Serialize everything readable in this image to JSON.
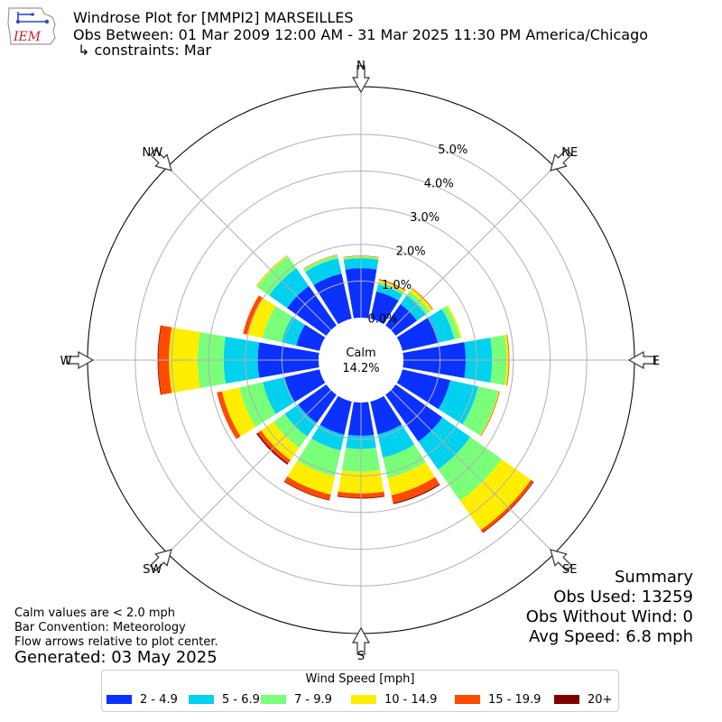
{
  "header": {
    "logo_text": "IEM",
    "title": "Windrose Plot for [MMPI2] MARSEILLES",
    "subtitle": "Obs Between: 01 Mar 2009 12:00 AM - 31 Mar 2025 11:30 PM America/Chicago",
    "constraints": "↳ constraints: Mar"
  },
  "chart_data": {
    "type": "windrose",
    "directions": [
      "N",
      "NNE",
      "NE",
      "ENE",
      "E",
      "ESE",
      "SE",
      "SSE",
      "S",
      "SSW",
      "SW",
      "WSW",
      "W",
      "WNW",
      "NW",
      "NNW"
    ],
    "direction_labels": [
      "N",
      "NE",
      "E",
      "SE",
      "S",
      "SW",
      "W",
      "NW"
    ],
    "radial_ticks": [
      "0.0%",
      "1.0%",
      "2.0%",
      "3.0%",
      "4.0%",
      "5.0%"
    ],
    "rmax": 5.0,
    "calm_label": "Calm",
    "calm_value": "14.2%",
    "bins": [
      "2 - 4.9",
      "5 - 6.9",
      "7 - 9.9",
      "10 - 14.9",
      "15 - 19.9",
      "20+"
    ],
    "colors": [
      "#0b31ff",
      "#00d1ee",
      "#7aff7a",
      "#ffee00",
      "#ff4b00",
      "#7f0000"
    ],
    "sectors": [
      [
        1.35,
        0.27,
        0.04,
        0.02,
        0.0,
        0.01
      ],
      [
        0.76,
        0.2,
        0.07,
        0.05,
        0.03,
        0.0
      ],
      [
        0.71,
        0.31,
        0.12,
        0.09,
        0.02,
        0.0
      ],
      [
        1.02,
        0.43,
        0.15,
        0.05,
        0.0,
        0.0
      ],
      [
        1.7,
        0.72,
        0.4,
        0.05,
        0.02,
        0.0
      ],
      [
        1.34,
        0.78,
        0.56,
        0.02,
        0.02,
        0.0
      ],
      [
        1.56,
        0.93,
        1.04,
        0.98,
        0.08,
        0.02
      ],
      [
        0.92,
        0.65,
        0.57,
        0.48,
        0.22,
        0.03
      ],
      [
        0.91,
        0.36,
        0.62,
        0.59,
        0.12,
        0.02
      ],
      [
        0.93,
        0.44,
        0.72,
        0.51,
        0.15,
        0.02
      ],
      [
        0.94,
        0.45,
        0.38,
        0.41,
        0.11,
        0.04
      ],
      [
        0.98,
        0.61,
        0.65,
        0.49,
        0.14,
        0.0
      ],
      [
        1.66,
        0.93,
        0.71,
        0.78,
        0.29,
        0.02
      ],
      [
        0.65,
        0.41,
        0.54,
        0.42,
        0.12,
        0.0
      ],
      [
        1.31,
        0.6,
        0.39,
        0.03,
        0.01,
        0.0
      ],
      [
        1.26,
        0.43,
        0.08,
        0.01,
        0.01,
        0.0
      ]
    ],
    "legend_title": "Wind Speed [mph]"
  },
  "summary": {
    "heading": "Summary",
    "obs_used": "Obs Used: 13259",
    "obs_without_wind": "Obs Without Wind: 0",
    "avg_speed": "Avg Speed: 6.8 mph"
  },
  "notes": {
    "calm": "Calm values are < 2.0 mph",
    "convention": "Bar Convention: Meteorology",
    "flow": "Flow arrows relative to plot center.",
    "generated": "Generated: 03 May 2025"
  }
}
